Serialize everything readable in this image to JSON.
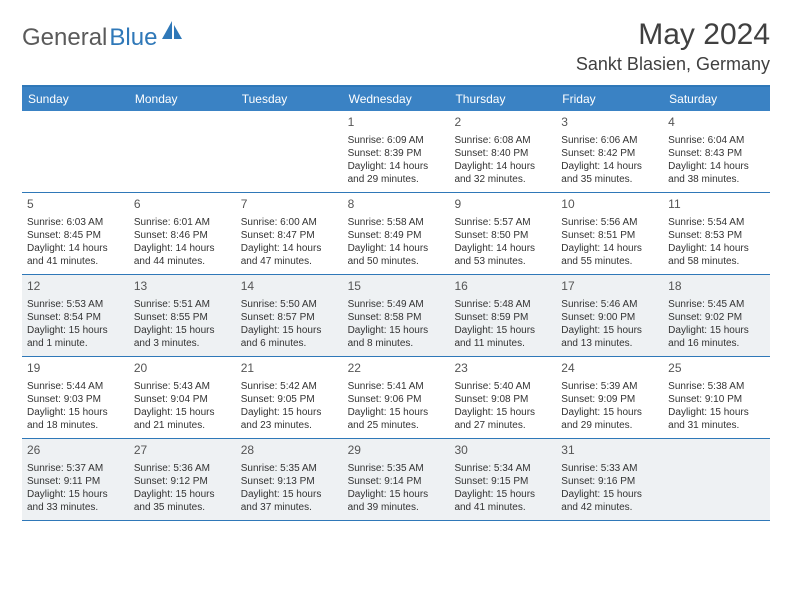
{
  "logo": {
    "general": "General",
    "blue": "Blue"
  },
  "title": "May 2024",
  "location": "Sankt Blasien, Germany",
  "day_headers": [
    "Sunday",
    "Monday",
    "Tuesday",
    "Wednesday",
    "Thursday",
    "Friday",
    "Saturday"
  ],
  "colors": {
    "header_bg": "#3a82c4",
    "border": "#2f78b8",
    "shaded_bg": "#eef1f3",
    "text": "#333333",
    "title_text": "#404040",
    "logo_gray": "#5a5a5a",
    "logo_blue": "#2f78b8"
  },
  "weeks": [
    [
      {
        "n": "",
        "sr": "",
        "ss": "",
        "dl": ""
      },
      {
        "n": "",
        "sr": "",
        "ss": "",
        "dl": ""
      },
      {
        "n": "",
        "sr": "",
        "ss": "",
        "dl": ""
      },
      {
        "n": "1",
        "sr": "Sunrise: 6:09 AM",
        "ss": "Sunset: 8:39 PM",
        "dl": "Daylight: 14 hours and 29 minutes."
      },
      {
        "n": "2",
        "sr": "Sunrise: 6:08 AM",
        "ss": "Sunset: 8:40 PM",
        "dl": "Daylight: 14 hours and 32 minutes."
      },
      {
        "n": "3",
        "sr": "Sunrise: 6:06 AM",
        "ss": "Sunset: 8:42 PM",
        "dl": "Daylight: 14 hours and 35 minutes."
      },
      {
        "n": "4",
        "sr": "Sunrise: 6:04 AM",
        "ss": "Sunset: 8:43 PM",
        "dl": "Daylight: 14 hours and 38 minutes."
      }
    ],
    [
      {
        "n": "5",
        "sr": "Sunrise: 6:03 AM",
        "ss": "Sunset: 8:45 PM",
        "dl": "Daylight: 14 hours and 41 minutes."
      },
      {
        "n": "6",
        "sr": "Sunrise: 6:01 AM",
        "ss": "Sunset: 8:46 PM",
        "dl": "Daylight: 14 hours and 44 minutes."
      },
      {
        "n": "7",
        "sr": "Sunrise: 6:00 AM",
        "ss": "Sunset: 8:47 PM",
        "dl": "Daylight: 14 hours and 47 minutes."
      },
      {
        "n": "8",
        "sr": "Sunrise: 5:58 AM",
        "ss": "Sunset: 8:49 PM",
        "dl": "Daylight: 14 hours and 50 minutes."
      },
      {
        "n": "9",
        "sr": "Sunrise: 5:57 AM",
        "ss": "Sunset: 8:50 PM",
        "dl": "Daylight: 14 hours and 53 minutes."
      },
      {
        "n": "10",
        "sr": "Sunrise: 5:56 AM",
        "ss": "Sunset: 8:51 PM",
        "dl": "Daylight: 14 hours and 55 minutes."
      },
      {
        "n": "11",
        "sr": "Sunrise: 5:54 AM",
        "ss": "Sunset: 8:53 PM",
        "dl": "Daylight: 14 hours and 58 minutes."
      }
    ],
    [
      {
        "n": "12",
        "sr": "Sunrise: 5:53 AM",
        "ss": "Sunset: 8:54 PM",
        "dl": "Daylight: 15 hours and 1 minute."
      },
      {
        "n": "13",
        "sr": "Sunrise: 5:51 AM",
        "ss": "Sunset: 8:55 PM",
        "dl": "Daylight: 15 hours and 3 minutes."
      },
      {
        "n": "14",
        "sr": "Sunrise: 5:50 AM",
        "ss": "Sunset: 8:57 PM",
        "dl": "Daylight: 15 hours and 6 minutes."
      },
      {
        "n": "15",
        "sr": "Sunrise: 5:49 AM",
        "ss": "Sunset: 8:58 PM",
        "dl": "Daylight: 15 hours and 8 minutes."
      },
      {
        "n": "16",
        "sr": "Sunrise: 5:48 AM",
        "ss": "Sunset: 8:59 PM",
        "dl": "Daylight: 15 hours and 11 minutes."
      },
      {
        "n": "17",
        "sr": "Sunrise: 5:46 AM",
        "ss": "Sunset: 9:00 PM",
        "dl": "Daylight: 15 hours and 13 minutes."
      },
      {
        "n": "18",
        "sr": "Sunrise: 5:45 AM",
        "ss": "Sunset: 9:02 PM",
        "dl": "Daylight: 15 hours and 16 minutes."
      }
    ],
    [
      {
        "n": "19",
        "sr": "Sunrise: 5:44 AM",
        "ss": "Sunset: 9:03 PM",
        "dl": "Daylight: 15 hours and 18 minutes."
      },
      {
        "n": "20",
        "sr": "Sunrise: 5:43 AM",
        "ss": "Sunset: 9:04 PM",
        "dl": "Daylight: 15 hours and 21 minutes."
      },
      {
        "n": "21",
        "sr": "Sunrise: 5:42 AM",
        "ss": "Sunset: 9:05 PM",
        "dl": "Daylight: 15 hours and 23 minutes."
      },
      {
        "n": "22",
        "sr": "Sunrise: 5:41 AM",
        "ss": "Sunset: 9:06 PM",
        "dl": "Daylight: 15 hours and 25 minutes."
      },
      {
        "n": "23",
        "sr": "Sunrise: 5:40 AM",
        "ss": "Sunset: 9:08 PM",
        "dl": "Daylight: 15 hours and 27 minutes."
      },
      {
        "n": "24",
        "sr": "Sunrise: 5:39 AM",
        "ss": "Sunset: 9:09 PM",
        "dl": "Daylight: 15 hours and 29 minutes."
      },
      {
        "n": "25",
        "sr": "Sunrise: 5:38 AM",
        "ss": "Sunset: 9:10 PM",
        "dl": "Daylight: 15 hours and 31 minutes."
      }
    ],
    [
      {
        "n": "26",
        "sr": "Sunrise: 5:37 AM",
        "ss": "Sunset: 9:11 PM",
        "dl": "Daylight: 15 hours and 33 minutes."
      },
      {
        "n": "27",
        "sr": "Sunrise: 5:36 AM",
        "ss": "Sunset: 9:12 PM",
        "dl": "Daylight: 15 hours and 35 minutes."
      },
      {
        "n": "28",
        "sr": "Sunrise: 5:35 AM",
        "ss": "Sunset: 9:13 PM",
        "dl": "Daylight: 15 hours and 37 minutes."
      },
      {
        "n": "29",
        "sr": "Sunrise: 5:35 AM",
        "ss": "Sunset: 9:14 PM",
        "dl": "Daylight: 15 hours and 39 minutes."
      },
      {
        "n": "30",
        "sr": "Sunrise: 5:34 AM",
        "ss": "Sunset: 9:15 PM",
        "dl": "Daylight: 15 hours and 41 minutes."
      },
      {
        "n": "31",
        "sr": "Sunrise: 5:33 AM",
        "ss": "Sunset: 9:16 PM",
        "dl": "Daylight: 15 hours and 42 minutes."
      },
      {
        "n": "",
        "sr": "",
        "ss": "",
        "dl": ""
      }
    ]
  ],
  "shaded_rows": [
    2,
    4
  ]
}
